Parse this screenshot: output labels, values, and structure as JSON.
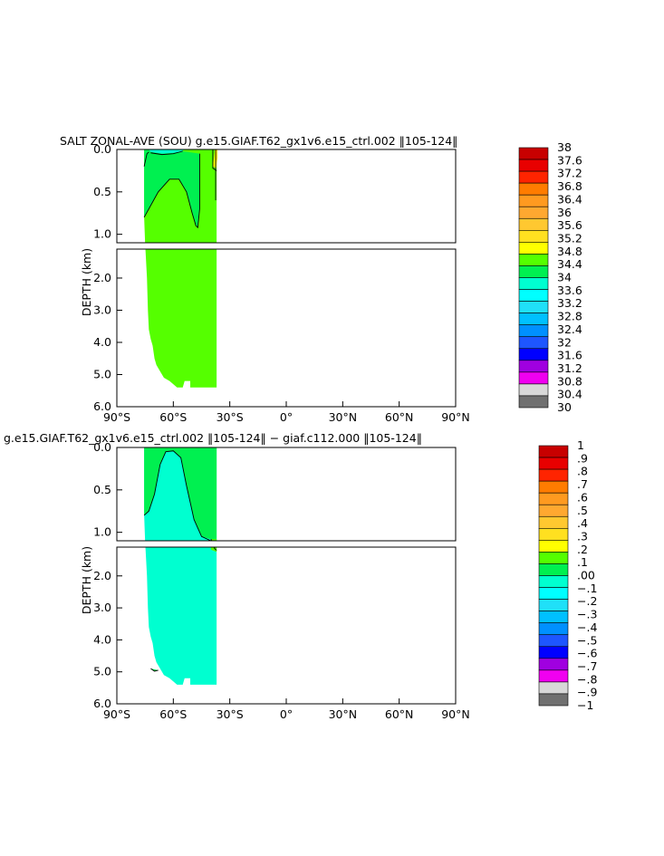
{
  "chart_data": [
    {
      "type": "heatmap",
      "title": "SALT ZONAL-AVE (SOU) g.e15.GIAF.T62_gx1v6.e15_ctrl.002 ‖105-124‖",
      "ylabel": "DEPTH (km)",
      "xlabel": "",
      "xlim": [
        -90,
        90
      ],
      "ylim": [
        6.0,
        0.0
      ],
      "y_break_km": 1.1,
      "x_ticks": [
        -90,
        -60,
        -30,
        0,
        30,
        60,
        90
      ],
      "x_tick_labels": [
        "90°S",
        "60°S",
        "30°S",
        "0°",
        "30°N",
        "60°N",
        "90°N"
      ],
      "y_ticks_upper": [
        0.0,
        0.5,
        1.0
      ],
      "y_tick_labels_upper": [
        "0.0",
        "0.5",
        "1.0"
      ],
      "y_ticks_lower": [
        2.0,
        3.0,
        4.0,
        5.0,
        6.0
      ],
      "y_tick_labels_lower": [
        "2.0",
        "3.0",
        "4.0",
        "5.0",
        "6.0"
      ],
      "background_level_color": "#55ff00",
      "colorbar": {
        "labels": [
          "38",
          "37.6",
          "37.2",
          "36.8",
          "36.4",
          "36",
          "35.6",
          "35.2",
          "34.8",
          "34.4",
          "34",
          "33.6",
          "33.2",
          "32.8",
          "32.4",
          "32",
          "31.6",
          "31.2",
          "30.8",
          "30.4",
          "30"
        ],
        "colors": [
          "#c80000",
          "#e80000",
          "#ff2400",
          "#ff7c00",
          "#ff9a20",
          "#ffa830",
          "#ffc830",
          "#ffe020",
          "#ffff00",
          "#55ff00",
          "#00f050",
          "#00ffd0",
          "#00ffff",
          "#20e0f8",
          "#00c0ff",
          "#0090ff",
          "#1e56ff",
          "#0000ff",
          "#a000e0",
          "#f000f0",
          "#d8d8d8",
          "#707070"
        ]
      },
      "regions": [
        {
          "value_range": [
            34.4,
            34.8
          ],
          "color": "#55ff00",
          "description": "bulk of Southern Ocean section"
        },
        {
          "value_range": [
            34.0,
            34.4
          ],
          "color": "#00f050",
          "description": "intermediate tongue 0-0.9 km, 75S-48S"
        },
        {
          "value_range": [
            33.6,
            34.0
          ],
          "color": "#00ffd0",
          "description": "fresh surface near 70S-60S"
        },
        {
          "value_range": [
            34.8,
            35.2
          ],
          "color": "#ffff00",
          "description": "salty surface near 33S"
        },
        {
          "value_range": [
            35.2,
            35.6
          ],
          "color": "#ffe020",
          "description": "saltiest surface near 32S"
        }
      ]
    },
    {
      "type": "heatmap",
      "title": "g.e15.GIAF.T62_gx1v6.e15_ctrl.002 ‖105-124‖ − giaf.c112.000 ‖105-124‖",
      "ylabel": "DEPTH (km)",
      "xlabel": "",
      "xlim": [
        -90,
        90
      ],
      "ylim": [
        6.0,
        0.0
      ],
      "y_break_km": 1.1,
      "x_ticks": [
        -90,
        -60,
        -30,
        0,
        30,
        60,
        90
      ],
      "x_tick_labels": [
        "90°S",
        "60°S",
        "30°S",
        "0°",
        "30°N",
        "60°N",
        "90°N"
      ],
      "y_ticks_upper": [
        0.0,
        0.5,
        1.0
      ],
      "y_tick_labels_upper": [
        "0.0",
        "0.5",
        "1.0"
      ],
      "y_ticks_lower": [
        2.0,
        3.0,
        4.0,
        5.0,
        6.0
      ],
      "y_tick_labels_lower": [
        "2.0",
        "3.0",
        "4.0",
        "5.0",
        "6.0"
      ],
      "background_level_color": "#00ffd0",
      "colorbar": {
        "labels": [
          "1",
          ".9",
          ".8",
          ".7",
          ".6",
          ".5",
          ".4",
          ".3",
          ".2",
          ".1",
          ".00",
          "−.1",
          "−.2",
          "−.3",
          "−.4",
          "−.5",
          "−.6",
          "−.7",
          "−.8",
          "−.9",
          "−1"
        ],
        "colors": [
          "#c80000",
          "#e80000",
          "#ff2400",
          "#ff7c00",
          "#ff9a20",
          "#ffa830",
          "#ffc830",
          "#ffe020",
          "#ffff00",
          "#55ff00",
          "#00f050",
          "#00ffd0",
          "#00ffff",
          "#20e0f8",
          "#00c0ff",
          "#0090ff",
          "#1e56ff",
          "#0000ff",
          "#a000e0",
          "#f000f0",
          "#d8d8d8",
          "#707070"
        ]
      },
      "regions": [
        {
          "value_range": [
            -0.1,
            0.0
          ],
          "color": "#00ffd0",
          "description": "most of section, slightly fresher"
        },
        {
          "value_range": [
            0.0,
            0.1
          ],
          "color": "#00f050",
          "description": "near-surface northern flank 48S-33S and southern edge"
        },
        {
          "value_range": [
            0.1,
            0.2
          ],
          "color": "#55ff00",
          "description": "small patch near 35S, 1.0-1.1 km"
        }
      ]
    }
  ]
}
